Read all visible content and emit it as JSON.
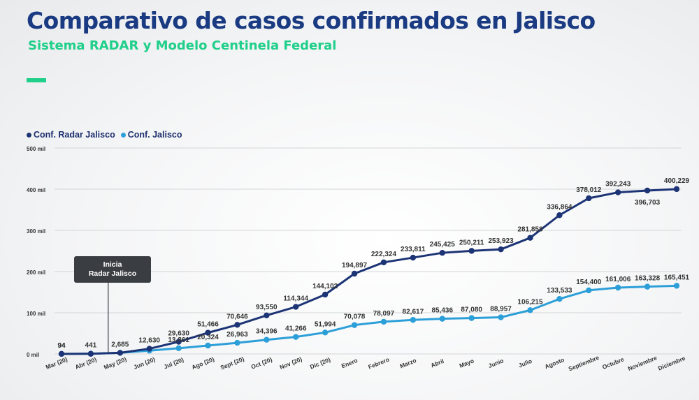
{
  "header": {
    "title": "Comparativo de casos confirmados en Jalisco",
    "subtitle": "Sistema RADAR y Modelo Centinela Federal"
  },
  "callout": {
    "line1": "Inicia",
    "line2": "Radar Jalisco"
  },
  "colors": {
    "title": "#1a3a82",
    "accent": "#1fcf8a",
    "series_radar": "#1c3475",
    "series_jalisco": "#2d9fd8"
  },
  "chart_data": {
    "type": "line",
    "legend_position": "top-left",
    "grid": true,
    "categories": [
      "Mar (20)",
      "Abr (20)",
      "May (20)",
      "Jun (20)",
      "Jul (20)",
      "Ago (20)",
      "Sept (20)",
      "Oct (20)",
      "Nov (20)",
      "Dic (20)",
      "Enero",
      "Febrero",
      "Marzo",
      "Abril",
      "Mayo",
      "Junio",
      "Julio",
      "Agosto",
      "Septiembre",
      "Octubre",
      "Noviembre",
      "Diciembre"
    ],
    "ylim": [
      0,
      500000
    ],
    "yticks": [
      0,
      100000,
      200000,
      300000,
      400000,
      500000
    ],
    "ytick_labels": [
      "0 mil",
      "100 mil",
      "200 mil",
      "300 mil",
      "400 mil",
      "500 mil"
    ],
    "series": [
      {
        "name": "Conf. Radar Jalisco",
        "values": [
          94,
          441,
          2685,
          12630,
          29630,
          51466,
          70646,
          93550,
          114344,
          144102,
          194897,
          222324,
          233811,
          245425,
          250211,
          253923,
          281858,
          336864,
          378012,
          392243,
          396703,
          400229
        ],
        "labels": [
          "94",
          "441",
          "2,685",
          "12,630",
          "29,630",
          "51,466",
          "70,646",
          "93,550",
          "114,344",
          "144,102",
          "194,897",
          "222,324",
          "233,811",
          "245,425",
          "250,211",
          "253,923",
          "281,858",
          "336,864",
          "378,012",
          "392,243",
          "396,703",
          "400,229"
        ]
      },
      {
        "name": "Conf. Jalisco",
        "values": [
          94,
          441,
          2685,
          8000,
          13861,
          20324,
          26963,
          34396,
          41266,
          51994,
          70078,
          78097,
          82617,
          85436,
          87080,
          88957,
          106215,
          133533,
          154400,
          161006,
          163328,
          165451
        ],
        "labels": [
          "94",
          "",
          "",
          "",
          "13,861",
          "20,324",
          "26,963",
          "34,396",
          "41,266",
          "51,994",
          "70,078",
          "78,097",
          "82,617",
          "85,436",
          "87,080",
          "88,957",
          "106,215",
          "133,533",
          "154,400",
          "161,006",
          "163,328",
          "165,451"
        ]
      }
    ]
  }
}
